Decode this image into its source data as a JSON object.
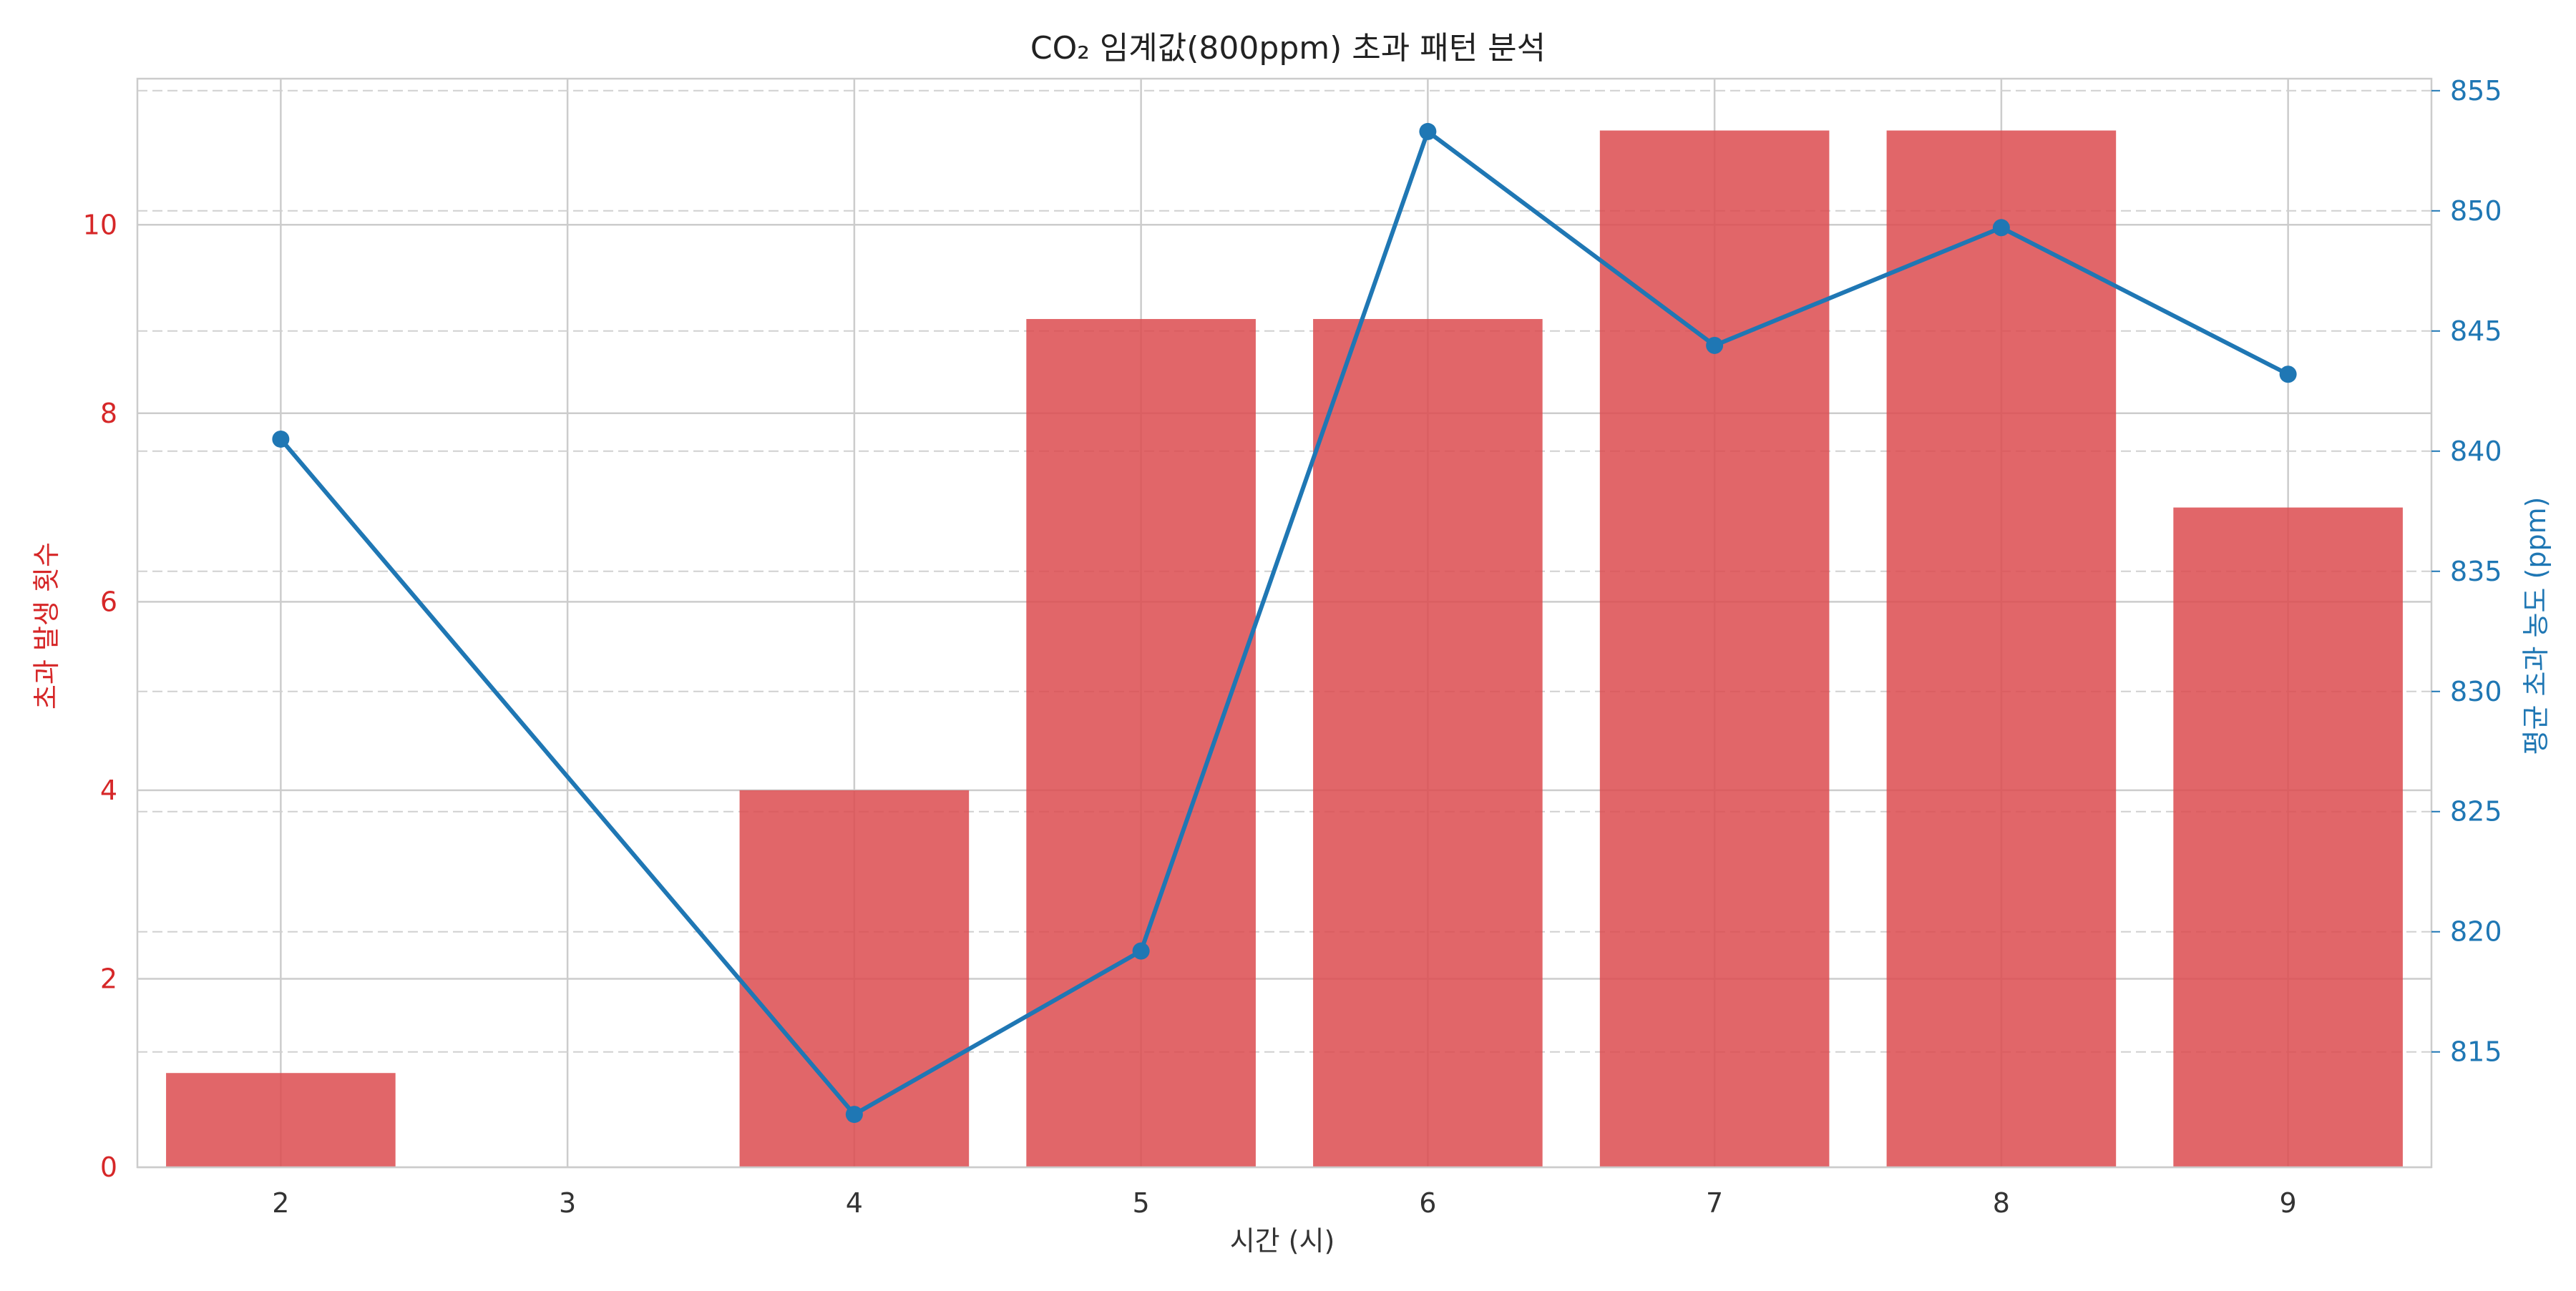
{
  "chart_data": {
    "type": "bar+line",
    "title": "CO₂ 임계값(800ppm) 초과 패턴 분석",
    "xlabel": "시간 (시)",
    "categories": [
      "2",
      "3",
      "4",
      "5",
      "6",
      "7",
      "8",
      "9"
    ],
    "bar_series": {
      "axis": "left",
      "ylabel": "초과 발생 횟수",
      "ylim": [
        0,
        11.55
      ],
      "yticks": [
        0,
        2,
        4,
        6,
        8,
        10
      ],
      "values": [
        1,
        0,
        4,
        9,
        9,
        11,
        11,
        7
      ]
    },
    "line_series": {
      "axis": "right",
      "ylabel": "평균 초과 농도 (ppm)",
      "ylim": [
        810.2,
        855.5
      ],
      "yticks": [
        815,
        820,
        825,
        830,
        835,
        840,
        845,
        850,
        855
      ],
      "points": [
        {
          "x": "2",
          "y": 840.5
        },
        {
          "x": "4",
          "y": 812.4
        },
        {
          "x": "5",
          "y": 819.2
        },
        {
          "x": "6",
          "y": 853.3
        },
        {
          "x": "7",
          "y": 844.4
        },
        {
          "x": "8",
          "y": 849.3
        },
        {
          "x": "9",
          "y": 843.2
        }
      ]
    },
    "colors": {
      "bar": "#dc4b4f",
      "line": "#1f77b4",
      "left_axis": "#d62728",
      "right_axis": "#1f77b4",
      "grid": "#cccccc",
      "text": "#333333"
    },
    "grid": true
  }
}
